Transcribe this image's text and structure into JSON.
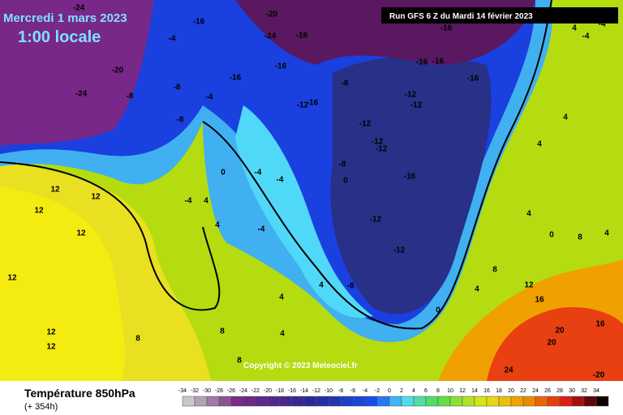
{
  "header": {
    "date": "Mercredi 1 mars 2023",
    "time": "1:00 locale",
    "run": "Run GFS 6 Z du Mardi 14 février 2023"
  },
  "copyright": "Copyright © 2023 Meteociel.fr",
  "footer": {
    "title": "Température 850hPa",
    "lead": "(+ 354h)"
  },
  "legend": {
    "ticks": [
      -34,
      -32,
      -30,
      -28,
      -26,
      -24,
      -22,
      -20,
      -18,
      -16,
      -14,
      -12,
      -10,
      -8,
      -6,
      -4,
      -2,
      0,
      2,
      4,
      6,
      8,
      10,
      12,
      14,
      16,
      18,
      20,
      22,
      24,
      26,
      28,
      30,
      32,
      34
    ]
  },
  "contour_labels": [
    -24,
    -20,
    -16,
    -24,
    -16,
    -16,
    -16,
    -16,
    -16,
    -20,
    -24,
    -8,
    -8,
    -8,
    -4,
    -4,
    -16,
    -16,
    -12,
    -16,
    -8,
    -12,
    -12,
    -12,
    -12,
    -12,
    -16,
    -12,
    -12,
    -8,
    -8,
    0,
    -4,
    -4,
    -4,
    0,
    -4,
    4,
    4,
    12,
    12,
    12,
    12,
    12,
    12,
    12,
    8,
    8,
    8,
    4,
    4,
    4,
    0,
    4,
    8,
    12,
    16,
    20,
    20,
    24,
    -20,
    4,
    4,
    4,
    4,
    0,
    8,
    4,
    16,
    -4,
    -4
  ]
}
